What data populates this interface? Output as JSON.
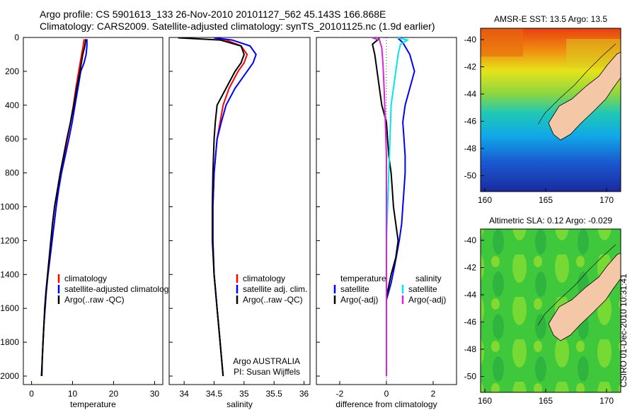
{
  "header": {
    "line1": "Argo profile: CS 5901613_133 26-Nov-2010 20101127_562 45.143S 166.868E",
    "line2": "Climatology: CARS2009. Satellite-adjusted climatology: synTS_20101125.nc (1.9d earlier)"
  },
  "stamp": "CSIRO 01-Dec-2010 10:31:41",
  "colors": {
    "clim": "#ff0000",
    "sat": "#0000ff",
    "argo": "#000000",
    "sat_sal": "#00e5ee",
    "argo_sal": "#e020e0",
    "land": "#f4c7a6"
  },
  "chart_data": [
    {
      "type": "line",
      "id": "temperature",
      "xlabel": "temperature",
      "ylabel": "",
      "xlim": [
        -2,
        32
      ],
      "ylim": [
        2050,
        0
      ],
      "xticks": [
        "0",
        "10",
        "20",
        "30"
      ],
      "xtick_values": [
        0,
        10,
        20,
        30
      ],
      "yticks": [
        "0",
        "200",
        "400",
        "600",
        "800",
        "1000",
        "1200",
        "1400",
        "1600",
        "1800",
        "2000"
      ],
      "ytick_values": [
        0,
        200,
        400,
        600,
        800,
        1000,
        1200,
        1400,
        1600,
        1800,
        2000
      ],
      "legend": [
        "climatology",
        "satellite-adjusted climatology",
        "Argo(..raw -QC)"
      ],
      "legend_placement": "lower-right",
      "series": [
        {
          "name": "climatology",
          "color": "#ff0000",
          "points": [
            [
              12.8,
              10
            ],
            [
              12.6,
              50
            ],
            [
              12.2,
              100
            ],
            [
              11.5,
              200
            ],
            [
              10.8,
              300
            ],
            [
              10.2,
              400
            ],
            [
              9.5,
              500
            ],
            [
              8.7,
              600
            ],
            [
              7.9,
              700
            ],
            [
              7.2,
              800
            ],
            [
              6.5,
              900
            ],
            [
              6.0,
              1000
            ],
            [
              5.5,
              1100
            ],
            [
              5.0,
              1200
            ],
            [
              4.5,
              1300
            ],
            [
              4.0,
              1400
            ],
            [
              3.6,
              1500
            ],
            [
              3.3,
              1600
            ],
            [
              3.0,
              1700
            ],
            [
              2.8,
              1800
            ],
            [
              2.6,
              1900
            ],
            [
              2.5,
              2000
            ]
          ]
        },
        {
          "name": "satellite-adjusted climatology",
          "color": "#0000ff",
          "points": [
            [
              13.5,
              10
            ],
            [
              13.5,
              50
            ],
            [
              13.3,
              100
            ],
            [
              12.8,
              150
            ],
            [
              12.0,
              200
            ],
            [
              11.3,
              300
            ],
            [
              10.6,
              400
            ],
            [
              9.9,
              500
            ],
            [
              9.1,
              600
            ],
            [
              8.2,
              700
            ],
            [
              7.3,
              800
            ],
            [
              6.6,
              900
            ],
            [
              6.0,
              1000
            ],
            [
              5.5,
              1100
            ],
            [
              5.0,
              1200
            ],
            [
              4.5,
              1300
            ],
            [
              4.0,
              1400
            ],
            [
              3.6,
              1500
            ],
            [
              3.3,
              1600
            ],
            [
              3.0,
              1700
            ],
            [
              2.8,
              1800
            ],
            [
              2.6,
              1900
            ],
            [
              2.5,
              2000
            ]
          ]
        },
        {
          "name": "Argo(..raw -QC)",
          "color": "#000000",
          "points": [
            [
              13.2,
              10
            ],
            [
              13.0,
              50
            ],
            [
              12.5,
              100
            ],
            [
              11.8,
              200
            ],
            [
              11.0,
              300
            ],
            [
              10.3,
              400
            ],
            [
              9.5,
              500
            ],
            [
              8.6,
              600
            ],
            [
              7.8,
              700
            ],
            [
              7.0,
              800
            ],
            [
              6.3,
              900
            ],
            [
              5.6,
              1000
            ],
            [
              5.1,
              1100
            ],
            [
              4.7,
              1200
            ],
            [
              4.3,
              1300
            ],
            [
              3.9,
              1400
            ],
            [
              3.5,
              1500
            ],
            [
              3.2,
              1600
            ],
            [
              3.0,
              1700
            ],
            [
              2.8,
              1800
            ],
            [
              2.6,
              1900
            ],
            [
              2.4,
              2000
            ]
          ]
        }
      ]
    },
    {
      "type": "line",
      "id": "salinity",
      "xlabel": "salinity",
      "xlim": [
        33.75,
        36.1
      ],
      "ylim": [
        2050,
        0
      ],
      "xticks": [
        "34",
        "34.5",
        "35",
        "35.5",
        "36"
      ],
      "xtick_values": [
        34,
        34.5,
        35,
        35.5,
        36
      ],
      "legend": [
        "climatology",
        "satellite adj. clim.",
        "Argo(..raw -QC)"
      ],
      "legend_placement": "lower-right",
      "annotation": [
        "Argo AUSTRALIA",
        "PI: Susan Wijffels"
      ],
      "series": [
        {
          "name": "climatology",
          "color": "#ff0000",
          "points": [
            [
              34.5,
              2
            ],
            [
              34.7,
              15
            ],
            [
              34.95,
              50
            ],
            [
              35.05,
              100
            ],
            [
              35.0,
              150
            ],
            [
              34.9,
              200
            ],
            [
              34.75,
              300
            ],
            [
              34.65,
              400
            ],
            [
              34.6,
              500
            ],
            [
              34.55,
              600
            ],
            [
              34.5,
              800
            ],
            [
              34.48,
              1000
            ],
            [
              34.48,
              1200
            ],
            [
              34.5,
              1400
            ],
            [
              34.55,
              1600
            ],
            [
              34.6,
              1800
            ],
            [
              34.65,
              2000
            ]
          ]
        },
        {
          "name": "satellite adj. clim.",
          "color": "#0000ff",
          "points": [
            [
              34.5,
              2
            ],
            [
              34.8,
              15
            ],
            [
              35.1,
              50
            ],
            [
              35.2,
              100
            ],
            [
              35.15,
              150
            ],
            [
              35.05,
              200
            ],
            [
              34.85,
              300
            ],
            [
              34.7,
              400
            ],
            [
              34.62,
              500
            ],
            [
              34.55,
              600
            ],
            [
              34.5,
              800
            ],
            [
              34.48,
              1000
            ],
            [
              34.48,
              1200
            ],
            [
              34.5,
              1400
            ],
            [
              34.55,
              1600
            ],
            [
              34.6,
              1800
            ],
            [
              34.65,
              2000
            ]
          ]
        },
        {
          "name": "Argo(..raw -QC)",
          "color": "#000000",
          "points": [
            [
              33.9,
              2
            ],
            [
              34.6,
              15
            ],
            [
              34.95,
              50
            ],
            [
              35.0,
              100
            ],
            [
              34.95,
              150
            ],
            [
              34.85,
              200
            ],
            [
              34.7,
              300
            ],
            [
              34.55,
              400
            ],
            [
              34.52,
              500
            ],
            [
              34.5,
              600
            ],
            [
              34.48,
              800
            ],
            [
              34.47,
              1000
            ],
            [
              34.47,
              1200
            ],
            [
              34.5,
              1400
            ],
            [
              34.55,
              1600
            ],
            [
              34.6,
              1800
            ],
            [
              34.65,
              2000
            ]
          ]
        }
      ]
    },
    {
      "type": "line",
      "id": "difference",
      "xlabel": "difference from climatology",
      "xlim": [
        -3,
        3
      ],
      "ylim": [
        2050,
        0
      ],
      "xticks": [
        "-2",
        "0",
        "2"
      ],
      "xtick_values": [
        -2,
        0,
        2
      ],
      "legend_groups": [
        {
          "title": "temperature",
          "items": [
            "satellite",
            "Argo(-adj)"
          ]
        },
        {
          "title": "salinity",
          "items": [
            "satellite",
            "Argo(-adj)"
          ]
        }
      ],
      "legend_placement": "lower-center",
      "series": [
        {
          "name": "temperature satellite",
          "color": "#0000ff",
          "points": [
            [
              0.5,
              5
            ],
            [
              0.7,
              30
            ],
            [
              1.0,
              100
            ],
            [
              1.2,
              200
            ],
            [
              1.0,
              300
            ],
            [
              0.8,
              400
            ],
            [
              0.7,
              500
            ],
            [
              0.75,
              600
            ],
            [
              0.8,
              700
            ],
            [
              0.8,
              800
            ],
            [
              0.75,
              900
            ],
            [
              0.7,
              1000
            ],
            [
              0.65,
              1100
            ],
            [
              0.55,
              1200
            ],
            [
              0.35,
              1350
            ],
            [
              0.2,
              1450
            ],
            [
              0.1,
              1500
            ],
            [
              0.0,
              1550
            ],
            [
              0.0,
              2000
            ]
          ]
        },
        {
          "name": "temperature Argo(-adj)",
          "color": "#000000",
          "points": [
            [
              -0.3,
              5
            ],
            [
              -0.6,
              40
            ],
            [
              -0.5,
              100
            ],
            [
              -0.4,
              200
            ],
            [
              -0.3,
              300
            ],
            [
              -0.2,
              400
            ],
            [
              0.0,
              500
            ],
            [
              0.05,
              600
            ],
            [
              0.1,
              700
            ],
            [
              0.2,
              800
            ],
            [
              0.25,
              900
            ],
            [
              0.3,
              1000
            ],
            [
              0.4,
              1100
            ],
            [
              0.5,
              1200
            ],
            [
              0.4,
              1300
            ],
            [
              0.2,
              1400
            ],
            [
              0.05,
              1500
            ],
            [
              0.0,
              1550
            ],
            [
              0.0,
              2000
            ]
          ]
        },
        {
          "name": "salinity satellite",
          "color": "#00e5ee",
          "points": [
            [
              0.5,
              2
            ],
            [
              0.9,
              15
            ],
            [
              0.6,
              40
            ],
            [
              0.5,
              100
            ],
            [
              0.4,
              200
            ],
            [
              0.3,
              300
            ],
            [
              0.2,
              400
            ],
            [
              0.15,
              600
            ],
            [
              0.1,
              800
            ],
            [
              0.05,
              1000
            ],
            [
              0.0,
              1200
            ],
            [
              0.0,
              2000
            ]
          ]
        },
        {
          "name": "salinity Argo(-adj)",
          "color": "#e020e0",
          "points": [
            [
              -0.6,
              2
            ],
            [
              -0.3,
              15
            ],
            [
              -0.2,
              60
            ],
            [
              -0.15,
              150
            ],
            [
              -0.1,
              300
            ],
            [
              -0.05,
              500
            ],
            [
              0.0,
              700
            ],
            [
              0.0,
              2000
            ]
          ]
        }
      ]
    }
  ],
  "maps": [
    {
      "title": "AMSR-E SST: 13.5 Argo: 13.5",
      "kind": "sst",
      "yticks": [
        "-40",
        "-42",
        "-44",
        "-46",
        "-48",
        "-50"
      ],
      "xticks": [
        "160",
        "165",
        "170"
      ]
    },
    {
      "title": "Altimetric SLA: 0.12 Argo: -0.029",
      "kind": "sla",
      "yticks": [
        "-40",
        "-42",
        "-44",
        "-46",
        "-48",
        "-50"
      ],
      "xticks": [
        "160",
        "165",
        "170"
      ]
    }
  ]
}
